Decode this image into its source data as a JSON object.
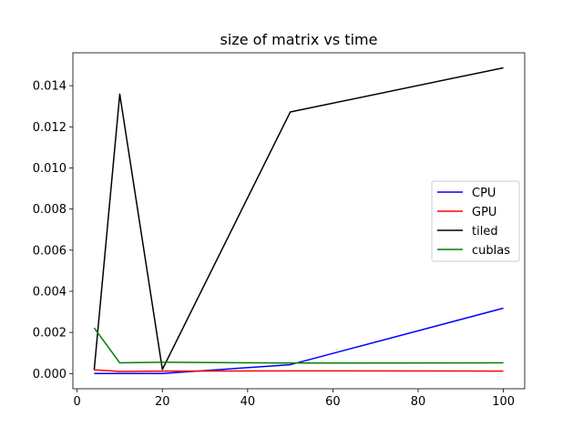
{
  "chart_data": {
    "type": "line",
    "title": "size of matrix vs time",
    "xlabel": "",
    "ylabel": "",
    "x": [
      4,
      10,
      20,
      50,
      100
    ],
    "xlim": [
      -1,
      105
    ],
    "ylim": [
      -0.00074,
      0.0156
    ],
    "xticks": [
      0,
      20,
      40,
      60,
      80,
      100
    ],
    "xtick_labels": [
      "0",
      "20",
      "40",
      "60",
      "80",
      "100"
    ],
    "yticks": [
      0.0,
      0.002,
      0.004,
      0.006,
      0.008,
      0.01,
      0.012,
      0.014
    ],
    "ytick_labels": [
      "0.000",
      "0.002",
      "0.004",
      "0.006",
      "0.008",
      "0.010",
      "0.012",
      "0.014"
    ],
    "grid": false,
    "legend_position": "center-right",
    "series": [
      {
        "name": "CPU",
        "color": "#0000ff",
        "values": [
          0.0,
          0.0,
          0.0,
          0.00043,
          0.00318
        ]
      },
      {
        "name": "GPU",
        "color": "#ff0000",
        "values": [
          0.00018,
          0.0001,
          0.00012,
          0.00013,
          0.00012
        ]
      },
      {
        "name": "tiled",
        "color": "#000000",
        "values": [
          0.00018,
          0.01359,
          0.0002,
          0.01272,
          0.01487
        ]
      },
      {
        "name": "cublas",
        "color": "#008000",
        "values": [
          0.00222,
          0.00052,
          0.00055,
          0.00051,
          0.00052
        ]
      }
    ]
  }
}
